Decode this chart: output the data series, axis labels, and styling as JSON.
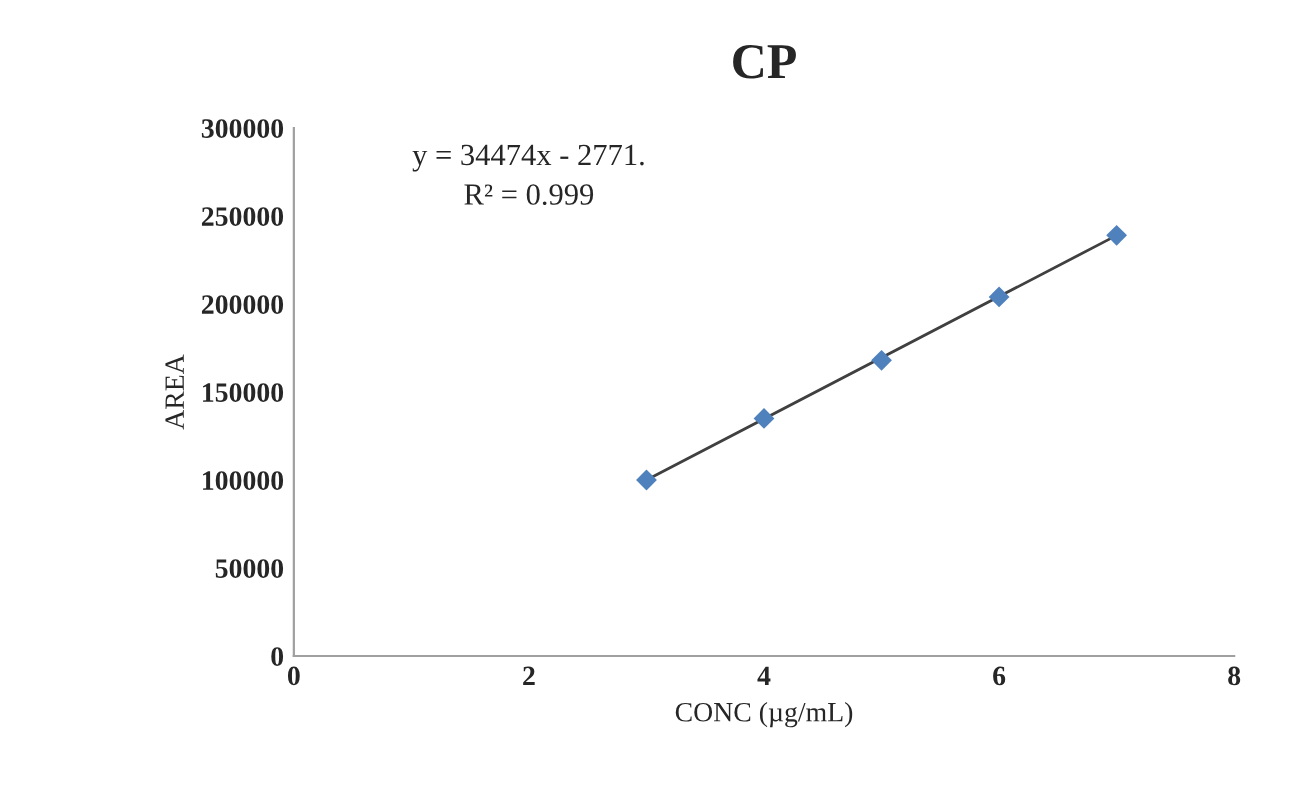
{
  "chart_data": {
    "type": "scatter",
    "title": "CP",
    "xlabel": "CONC (µg/mL)",
    "ylabel": "AREA",
    "annotations": [
      "y = 34474x - 2771.",
      "R² = 0.999"
    ],
    "series": [
      {
        "color": "#4f81bd",
        "marker": "diamond",
        "x": [
          3,
          4,
          5,
          6,
          7
        ],
        "values": [
          100000,
          135000,
          168000,
          204000,
          239000
        ]
      },
      {
        "type": "line",
        "color": "#404040",
        "marker": "none",
        "x": [
          3,
          7
        ],
        "values": [
          100000,
          239000
        ]
      }
    ],
    "xlim": [
      0,
      8
    ],
    "xticks": [
      0,
      2,
      4,
      6,
      8
    ],
    "ylim": [
      0,
      300000
    ],
    "yticks": [
      0,
      50000,
      100000,
      150000,
      200000,
      250000,
      300000
    ],
    "grid": false,
    "legend": false
  }
}
